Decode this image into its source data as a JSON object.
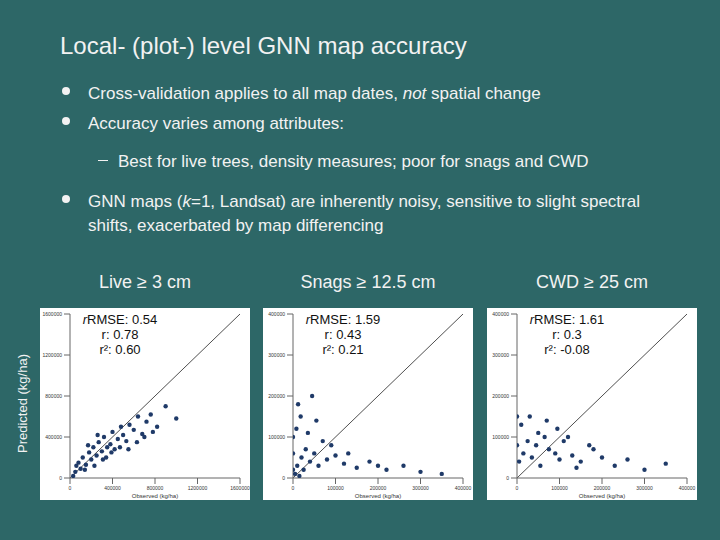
{
  "title": "Local- (plot-) level GNN map accuracy",
  "bullets": [
    {
      "level": 1,
      "runs": [
        {
          "text": "Cross-validation applies to all map dates, "
        },
        {
          "text": "not",
          "italic": true
        },
        {
          "text": " spatial change"
        }
      ]
    },
    {
      "level": 1,
      "runs": [
        {
          "text": "Accuracy varies among attributes:"
        }
      ]
    },
    {
      "level": 2,
      "runs": [
        {
          "text": "Best for live trees, density measures; poor for snags and CWD"
        }
      ]
    },
    {
      "level": 1,
      "runs": [
        {
          "text": "GNN maps ("
        },
        {
          "text": "k",
          "italic": true
        },
        {
          "text": "=1, Landsat) are inherently noisy, sensitive to slight spectral shifts, exacerbated by map differencing"
        }
      ]
    }
  ],
  "y_axis_title": "Predicted (kg/ha)",
  "chart_data": [
    {
      "type": "scatter",
      "title": "Live ≥ 3 cm",
      "xlabel": "Observed (kg/ha)",
      "xlim": [
        0,
        1600000
      ],
      "ylim": [
        0,
        1600000
      ],
      "xticks": [
        0,
        400000,
        800000,
        1200000,
        1600000
      ],
      "yticks": [
        0,
        400000,
        800000,
        1200000,
        1600000
      ],
      "color": "#1f3a68",
      "marker": "circle",
      "reference_line": {
        "x": [
          0,
          1600000
        ],
        "y": [
          0,
          1600000
        ]
      },
      "stats": [
        {
          "name": "rRMSE",
          "value": 0.54
        },
        {
          "name": "r",
          "value": 0.78
        },
        {
          "name": "r²",
          "value": 0.6,
          "label": "0.60"
        }
      ],
      "x": [
        50000,
        80000,
        100000,
        120000,
        150000,
        180000,
        200000,
        220000,
        250000,
        270000,
        300000,
        320000,
        350000,
        380000,
        400000,
        420000,
        450000,
        480000,
        500000,
        530000,
        560000,
        600000,
        640000,
        680000,
        720000,
        760000,
        820000,
        900000,
        1000000,
        60000,
        140000,
        230000,
        310000,
        390000,
        470000,
        550000,
        630000,
        700000,
        780000,
        30000,
        170000,
        260000,
        340000
      ],
      "values": [
        60000,
        150000,
        90000,
        200000,
        130000,
        250000,
        180000,
        300000,
        220000,
        350000,
        260000,
        400000,
        300000,
        330000,
        450000,
        280000,
        380000,
        500000,
        420000,
        360000,
        520000,
        470000,
        600000,
        430000,
        550000,
        620000,
        500000,
        700000,
        580000,
        120000,
        80000,
        120000,
        180000,
        250000,
        300000,
        280000,
        350000,
        400000,
        450000,
        20000,
        320000,
        420000,
        200000
      ]
    },
    {
      "type": "scatter",
      "title": "Snags ≥ 12.5 cm",
      "xlabel": "Observed (kg/ha)",
      "xlim": [
        0,
        400000
      ],
      "ylim": [
        0,
        400000
      ],
      "xticks": [
        0,
        100000,
        200000,
        300000,
        400000
      ],
      "yticks": [
        0,
        100000,
        200000,
        300000,
        400000
      ],
      "color": "#1f3a68",
      "marker": "circle",
      "reference_line": {
        "x": [
          0,
          400000
        ],
        "y": [
          0,
          400000
        ]
      },
      "stats": [
        {
          "name": "rRMSE",
          "value": 1.59
        },
        {
          "name": "r",
          "value": 0.43
        },
        {
          "name": "r²",
          "value": 0.21
        }
      ],
      "x": [
        5000,
        10000,
        15000,
        20000,
        25000,
        30000,
        40000,
        50000,
        60000,
        70000,
        80000,
        100000,
        120000,
        150000,
        180000,
        220000,
        260000,
        300000,
        350000,
        8000,
        12000,
        18000,
        35000,
        45000,
        55000,
        90000,
        130000,
        200000,
        0,
        0,
        0
      ],
      "values": [
        10000,
        30000,
        5000,
        50000,
        20000,
        70000,
        40000,
        60000,
        30000,
        90000,
        45000,
        55000,
        35000,
        25000,
        40000,
        20000,
        30000,
        15000,
        10000,
        120000,
        180000,
        150000,
        110000,
        200000,
        140000,
        80000,
        60000,
        30000,
        20000,
        60000,
        100000
      ]
    },
    {
      "type": "scatter",
      "title": "CWD ≥ 25 cm",
      "xlabel": "Observed (kg/ha)",
      "xlim": [
        0,
        400000
      ],
      "ylim": [
        0,
        400000
      ],
      "xticks": [
        0,
        100000,
        200000,
        300000,
        400000
      ],
      "yticks": [
        0,
        100000,
        200000,
        300000,
        400000
      ],
      "color": "#1f3a68",
      "marker": "circle",
      "reference_line": {
        "x": [
          0,
          400000
        ],
        "y": [
          0,
          400000
        ]
      },
      "stats": [
        {
          "name": "rRMSE",
          "value": 1.61
        },
        {
          "name": "r",
          "value": 0.3
        },
        {
          "name": "r²",
          "value": -0.08
        }
      ],
      "x": [
        5000,
        15000,
        25000,
        35000,
        45000,
        55000,
        65000,
        75000,
        90000,
        100000,
        110000,
        130000,
        150000,
        170000,
        200000,
        230000,
        260000,
        300000,
        350000,
        10000,
        30000,
        50000,
        70000,
        95000,
        120000,
        140000,
        180000,
        0,
        0
      ],
      "values": [
        40000,
        60000,
        90000,
        50000,
        80000,
        30000,
        100000,
        70000,
        60000,
        45000,
        90000,
        55000,
        40000,
        80000,
        50000,
        30000,
        45000,
        20000,
        35000,
        130000,
        150000,
        110000,
        140000,
        120000,
        100000,
        25000,
        70000,
        80000,
        150000
      ]
    }
  ]
}
